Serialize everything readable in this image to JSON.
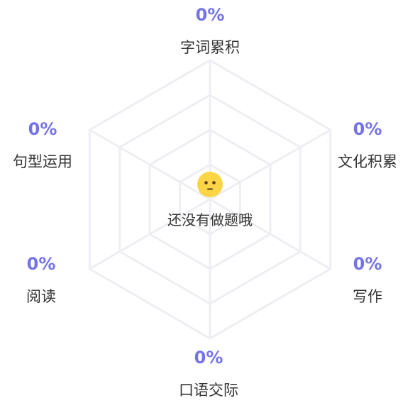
{
  "chart_data": {
    "type": "radar",
    "categories": [
      "字词累积",
      "文化积累",
      "写作",
      "口语交际",
      "阅读",
      "句型运用"
    ],
    "values": [
      0,
      0,
      0,
      0,
      0,
      0
    ],
    "value_labels": [
      "0%",
      "0%",
      "0%",
      "0%",
      "0%",
      "0%"
    ],
    "range": [
      0,
      100
    ],
    "grid_levels": 4,
    "grid": true
  },
  "empty_state": {
    "message": "还没有做题哦",
    "icon": "neutral-face-icon"
  },
  "colors": {
    "value": "#7573e8",
    "grid": "#eeeef3",
    "text": "#333333",
    "face": "#fbd545"
  }
}
